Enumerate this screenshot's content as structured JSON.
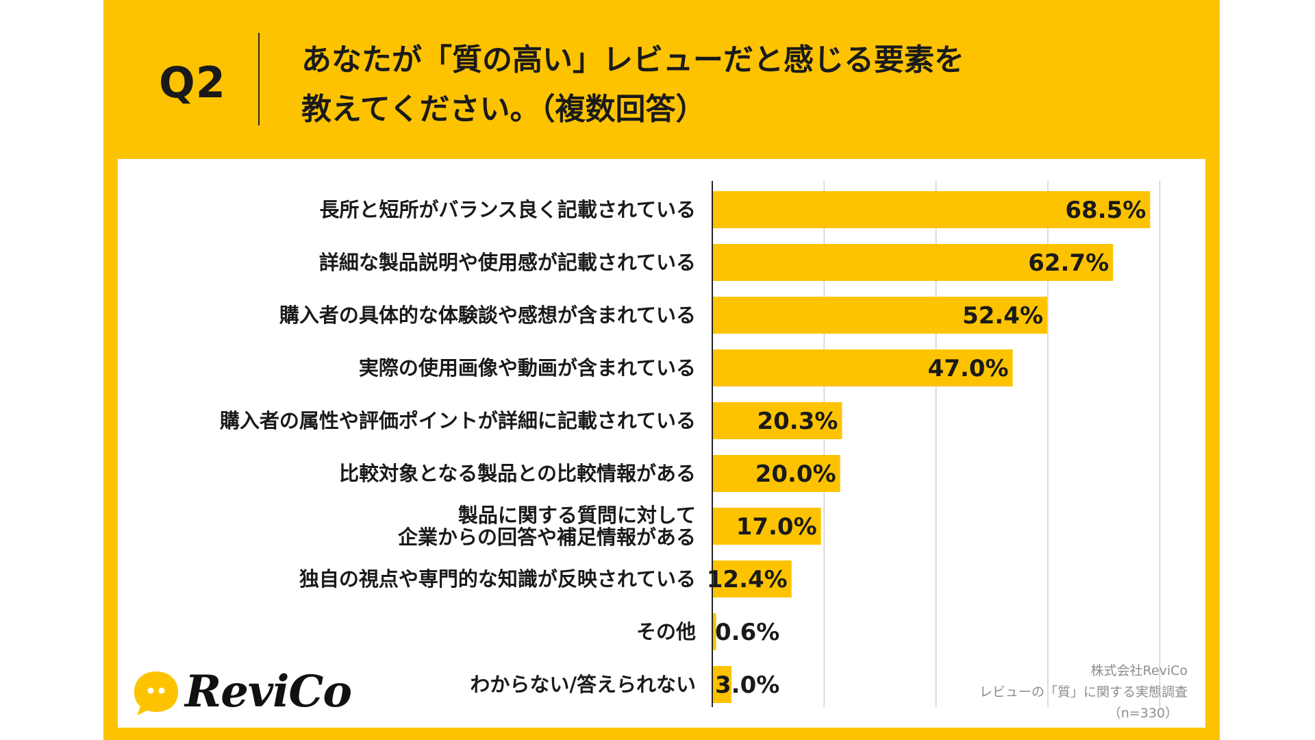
{
  "header": {
    "question_number": "Q2",
    "title_lines": [
      "あなたが「質の高い」レビューだと感じる要素を",
      "教えてください。（複数回答）"
    ]
  },
  "colors": {
    "background": "#FDC300",
    "bar": "#FDC300",
    "panel": "#FFFFFF",
    "text": "#1A1A1A",
    "grid": "#CFCFCF"
  },
  "chart_data": {
    "type": "bar",
    "orientation": "horizontal",
    "categories": [
      "長所と短所がバランス良く記載されている",
      "詳細な製品説明や使用感が記載されている",
      "購入者の具体的な体験談や感想が含まれている",
      "実際の使用画像や動画が含まれている",
      "購入者の属性や評価ポイントが詳細に記載されている",
      "比較対象となる製品との比較情報がある",
      "製品に関する質問に対して\n企業からの回答や補足情報がある",
      "独自の視点や専門的な知識が反映されている",
      "その他",
      "わからない/答えられない"
    ],
    "values": [
      68.5,
      62.7,
      52.4,
      47.0,
      20.3,
      20.0,
      17.0,
      12.4,
      0.6,
      3.0
    ],
    "value_labels": [
      "68.5%",
      "62.7%",
      "52.4%",
      "47.0%",
      "20.3%",
      "20.0%",
      "17.0%",
      "12.4%",
      "0.6%",
      "3.0%"
    ],
    "xlim": [
      0,
      70
    ],
    "grid_step": 17.5,
    "grid": true,
    "legend": "none"
  },
  "credits": {
    "company": "株式会社ReviCo",
    "survey": "レビューの「質」に関する実態調査",
    "sample": "（n=330）"
  },
  "logo": {
    "text": "ReviCo",
    "icon": "speech-bubble-icon"
  }
}
